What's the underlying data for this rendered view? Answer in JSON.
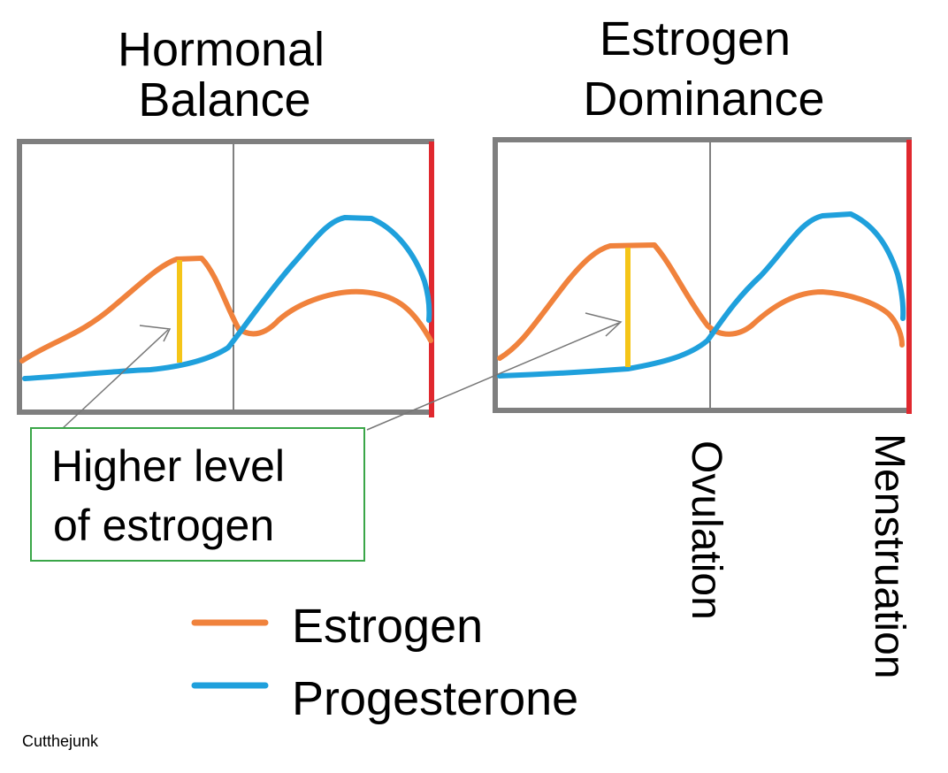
{
  "panels": [
    {
      "title_lines": [
        "Hormonal",
        "Balance"
      ]
    },
    {
      "title_lines": [
        "Estrogen",
        "Dominance"
      ]
    }
  ],
  "callout": {
    "lines": [
      "Higher level",
      "of estrogen"
    ]
  },
  "markers": {
    "ovulation": "Ovulation",
    "menstruation": "Menstruation"
  },
  "legend": {
    "items": [
      "Estrogen",
      "Progesterone"
    ]
  },
  "credit": "Cutthejunk"
}
